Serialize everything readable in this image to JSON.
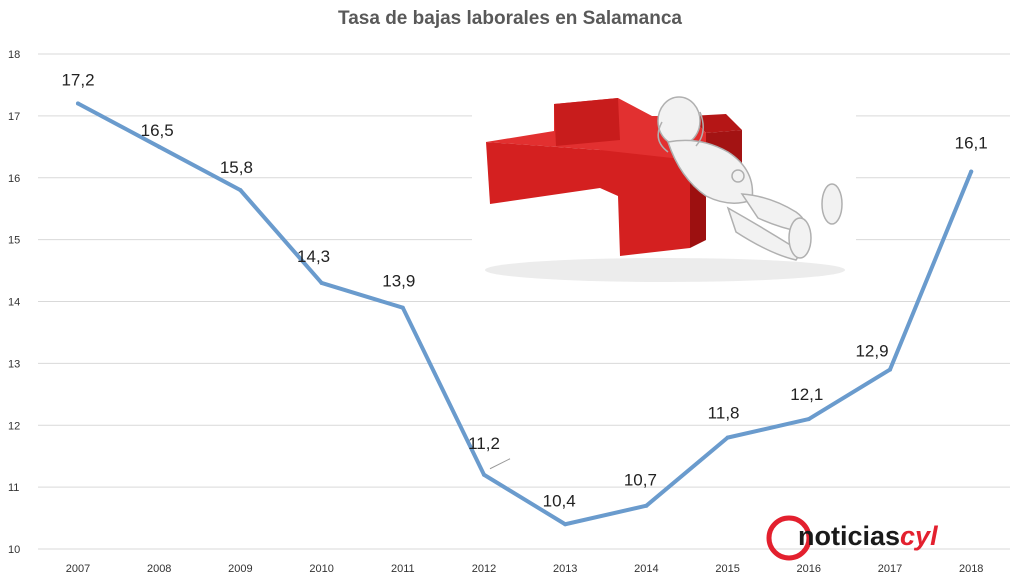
{
  "chart_data": {
    "type": "line",
    "title": "Tasa de bajas laborales en Salamanca",
    "xlabel": "",
    "ylabel": "",
    "categories": [
      "2007",
      "2008",
      "2009",
      "2010",
      "2011",
      "2012",
      "2013",
      "2014",
      "2015",
      "2016",
      "2017",
      "2018"
    ],
    "series": [
      {
        "values": [
          17.2,
          16.5,
          15.8,
          14.3,
          13.9,
          11.2,
          10.4,
          10.7,
          11.8,
          12.1,
          12.9,
          16.1
        ],
        "labels": [
          "17,2",
          "16,5",
          "15,8",
          "14,3",
          "13,9",
          "11,2",
          "10,4",
          "10,7",
          "11,8",
          "12,1",
          "12,9",
          "16,1"
        ]
      }
    ],
    "ylim": [
      10,
      18
    ],
    "yticks": [
      "10",
      "11",
      "12",
      "13",
      "14",
      "15",
      "16",
      "17",
      "18"
    ],
    "grid": true,
    "legend": "none",
    "line_color": "#6a9bcd",
    "grid_color": "#d9d9d9"
  },
  "brand": {
    "name": "noticiascyl",
    "text_prefix": "noticias",
    "text_suffix": "cyl",
    "prefix_color": "#1a1a1a",
    "accent_color": "#e3202e"
  },
  "illustration": {
    "icon": "red-cross-with-resting-figure",
    "cross_color": "#d42020"
  }
}
